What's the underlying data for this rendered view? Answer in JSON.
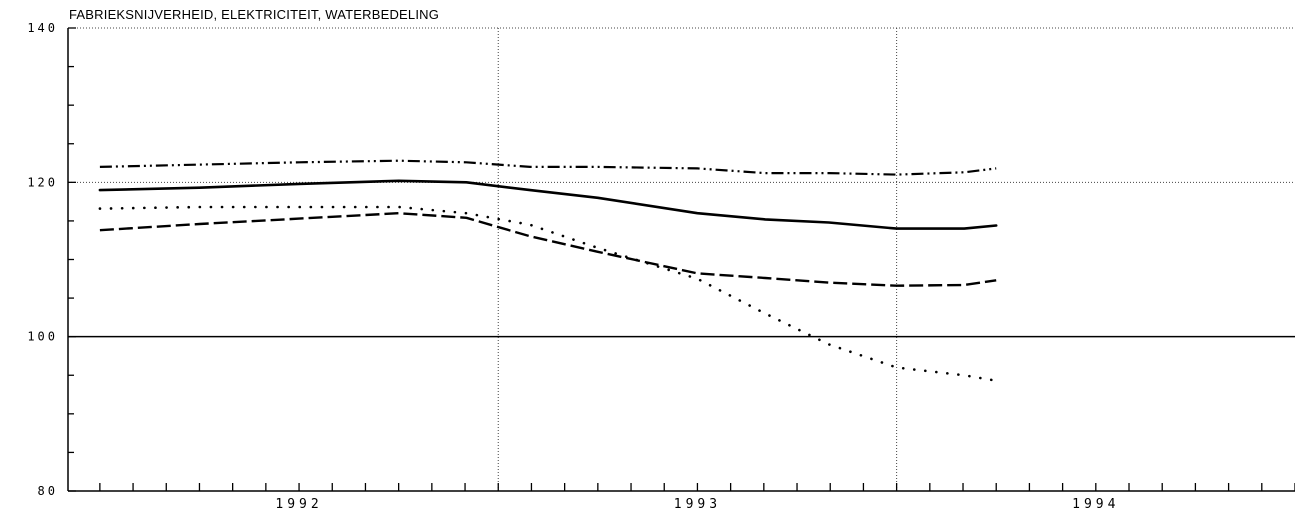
{
  "chart_data": {
    "type": "line",
    "title": "FABRIEKSNIJVERHEID, ELEKTRICITEIT, WATERBEDELING",
    "xlabel": "",
    "ylabel": "",
    "ylim": [
      80,
      140
    ],
    "y_ticks": [
      "140",
      "120",
      "100",
      "80"
    ],
    "x_year_labels": [
      {
        "label": "1992",
        "x": 1992.0
      },
      {
        "label": "1993",
        "x": 1993.0
      },
      {
        "label": "1994",
        "x": 1994.0
      }
    ],
    "xlim": [
      1991.42,
      1994.5
    ],
    "grid": {
      "x_lines": [
        1992.5,
        1993.5
      ],
      "y_lines": [
        120,
        140
      ]
    },
    "reference_line": 100,
    "series": [
      {
        "style": "dashdotdot",
        "x": [
          1991.5,
          1991.75,
          1992.0,
          1992.25,
          1992.42,
          1992.58,
          1992.75,
          1993.0,
          1993.17,
          1993.33,
          1993.5,
          1993.67,
          1993.75
        ],
        "values": [
          122.0,
          122.3,
          122.6,
          122.8,
          122.6,
          122.0,
          122.0,
          121.8,
          121.2,
          121.2,
          121.0,
          121.3,
          121.8
        ]
      },
      {
        "style": "solid",
        "x": [
          1991.5,
          1991.75,
          1992.0,
          1992.25,
          1992.42,
          1992.58,
          1992.75,
          1993.0,
          1993.17,
          1993.33,
          1993.5,
          1993.67,
          1993.75
        ],
        "values": [
          119.0,
          119.3,
          119.8,
          120.2,
          120.0,
          119.0,
          118.0,
          116.0,
          115.2,
          114.8,
          114.0,
          114.0,
          114.4
        ]
      },
      {
        "style": "dotted",
        "x": [
          1991.5,
          1991.75,
          1992.0,
          1992.25,
          1992.42,
          1992.58,
          1992.75,
          1993.0,
          1993.17,
          1993.33,
          1993.5,
          1993.67,
          1993.75
        ],
        "values": [
          116.6,
          116.8,
          116.8,
          116.8,
          116.0,
          114.5,
          111.5,
          107.5,
          103.0,
          99.0,
          96.0,
          95.0,
          94.3
        ]
      },
      {
        "style": "dashed",
        "x": [
          1991.5,
          1991.75,
          1992.0,
          1992.25,
          1992.42,
          1992.58,
          1992.75,
          1993.0,
          1993.17,
          1993.33,
          1993.5,
          1993.67,
          1993.75
        ],
        "values": [
          113.8,
          114.6,
          115.3,
          116.0,
          115.4,
          113.0,
          111.0,
          108.2,
          107.6,
          107.0,
          106.6,
          106.7,
          107.3
        ]
      }
    ]
  }
}
